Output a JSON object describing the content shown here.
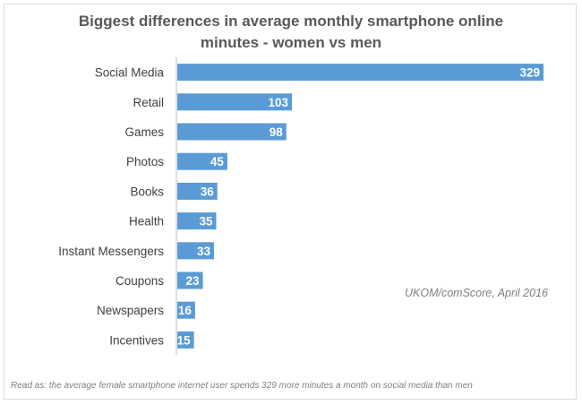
{
  "chart_data": {
    "type": "bar",
    "orientation": "horizontal",
    "title_lines": [
      "Biggest differences in average monthly smartphone online",
      "minutes - women vs men"
    ],
    "categories": [
      "Social Media",
      "Retail",
      "Games",
      "Photos",
      "Books",
      "Health",
      "Instant Messengers",
      "Coupons",
      "Newspapers",
      "Incentives"
    ],
    "values": [
      329,
      103,
      98,
      45,
      36,
      35,
      33,
      23,
      16,
      15
    ],
    "value_labels": [
      "329",
      "103",
      "98",
      "45",
      "36",
      "35",
      "33",
      "23",
      "16",
      "15"
    ],
    "bar_color": "#5b9bd5",
    "axis_color": "#bfbfbf",
    "xlim": [
      0,
      329
    ],
    "grid": false,
    "legend": "none"
  },
  "source": "UKOM/comScore, April 2016",
  "footnote": "Read as: the average female smartphone internet user spends 329 more minutes a month on social media than men"
}
